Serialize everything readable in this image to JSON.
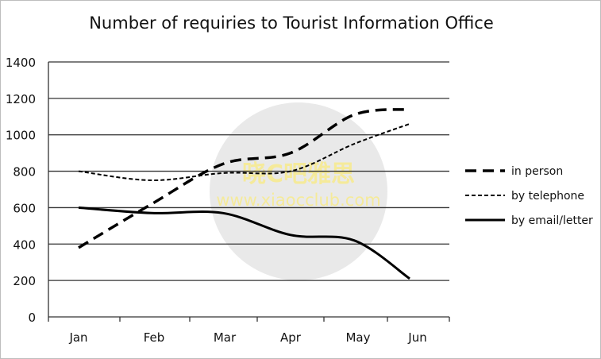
{
  "chart_data": {
    "type": "line",
    "title": "Number of requiries to Tourist Information Office",
    "xlabel": "",
    "ylabel": "",
    "categories": [
      "Jan",
      "Feb",
      "Mar",
      "Apr",
      "May",
      "Jun"
    ],
    "ylim": [
      0,
      1400
    ],
    "yticks": [
      0,
      200,
      400,
      600,
      800,
      1000,
      1200,
      1400
    ],
    "grid": true,
    "legend_position": "right",
    "series": [
      {
        "name": "in person",
        "style": "long-dash",
        "values": [
          380,
          620,
          840,
          900,
          1110,
          1140
        ]
      },
      {
        "name": "by telephone",
        "style": "short-dash",
        "values": [
          800,
          750,
          790,
          800,
          950,
          1060
        ]
      },
      {
        "name": "by email/letter",
        "style": "solid",
        "values": [
          600,
          570,
          570,
          450,
          420,
          210
        ]
      }
    ]
  },
  "watermark": {
    "line1": "晓C吧雅思",
    "line2": "www.xiaocclub.com"
  }
}
